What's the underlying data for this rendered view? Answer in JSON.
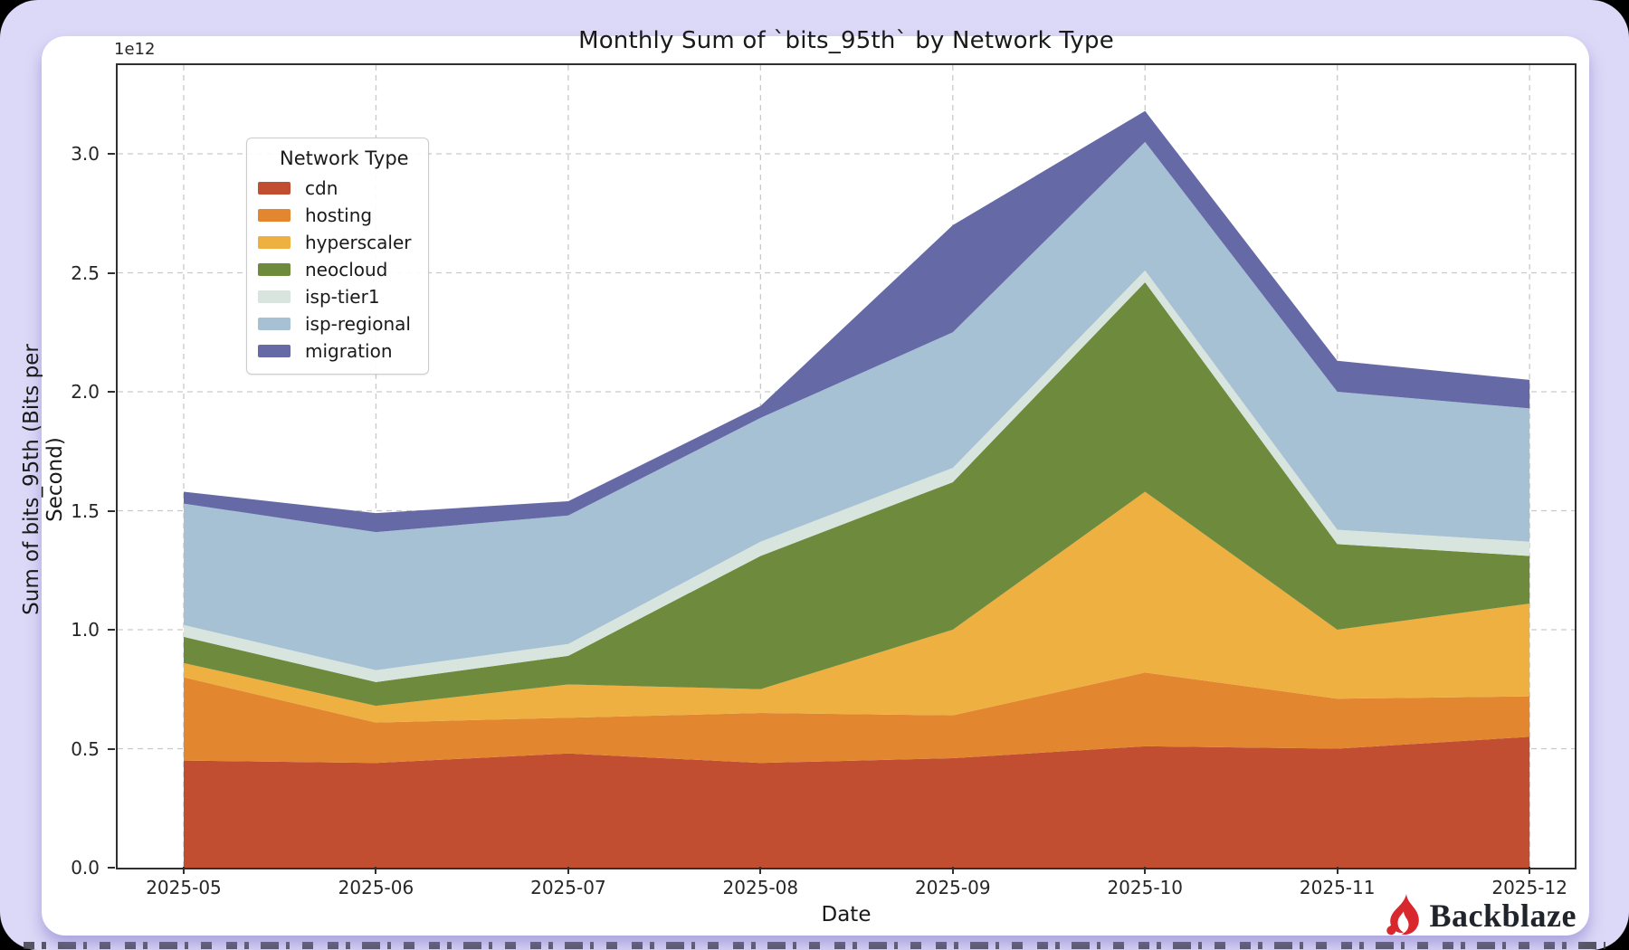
{
  "chart_data": {
    "type": "area",
    "stacked": true,
    "title": "Monthly Sum of `bits_95th` by Network Type",
    "xlabel": "Date",
    "ylabel": "Sum of bits_95th (Bits per Second)",
    "y_offset_label": "1e12",
    "unit": "1e12 bits per second",
    "grid": true,
    "legend_title": "Network Type",
    "legend_position": "upper left",
    "x": [
      "2025-05",
      "2025-06",
      "2025-07",
      "2025-08",
      "2025-09",
      "2025-10",
      "2025-11",
      "2025-12"
    ],
    "yticks": [
      0.0,
      0.5,
      1.0,
      1.5,
      2.0,
      2.5,
      3.0
    ],
    "ylim": [
      0,
      3.375
    ],
    "series": [
      {
        "name": "cdn",
        "color": "#c24e32",
        "values": [
          0.45,
          0.44,
          0.48,
          0.44,
          0.46,
          0.51,
          0.5,
          0.55
        ]
      },
      {
        "name": "hosting",
        "color": "#e2862f",
        "values": [
          0.35,
          0.17,
          0.15,
          0.21,
          0.18,
          0.31,
          0.21,
          0.17
        ]
      },
      {
        "name": "hyperscaler",
        "color": "#edb041",
        "values": [
          0.06,
          0.07,
          0.14,
          0.1,
          0.36,
          0.76,
          0.29,
          0.39
        ]
      },
      {
        "name": "neocloud",
        "color": "#6e8b3d",
        "values": [
          0.11,
          0.1,
          0.12,
          0.56,
          0.62,
          0.88,
          0.36,
          0.2
        ]
      },
      {
        "name": "isp-tier1",
        "color": "#d8e5df",
        "values": [
          0.05,
          0.05,
          0.05,
          0.06,
          0.06,
          0.05,
          0.06,
          0.06
        ]
      },
      {
        "name": "isp-regional",
        "color": "#a6c0d4",
        "values": [
          0.51,
          0.58,
          0.54,
          0.52,
          0.57,
          0.54,
          0.58,
          0.56
        ]
      },
      {
        "name": "migration",
        "color": "#6569a6",
        "values": [
          0.05,
          0.08,
          0.06,
          0.05,
          0.45,
          0.13,
          0.13,
          0.12
        ]
      }
    ],
    "totals": [
      1.58,
      1.49,
      1.54,
      1.94,
      2.7,
      3.18,
      2.13,
      2.05
    ]
  },
  "logo": {
    "text": "Backblaze",
    "flame_color": "#d9272e",
    "text_color": "#20242b"
  },
  "frame": {
    "background_color": "#dcd8f7",
    "card_color": "#ffffff"
  }
}
